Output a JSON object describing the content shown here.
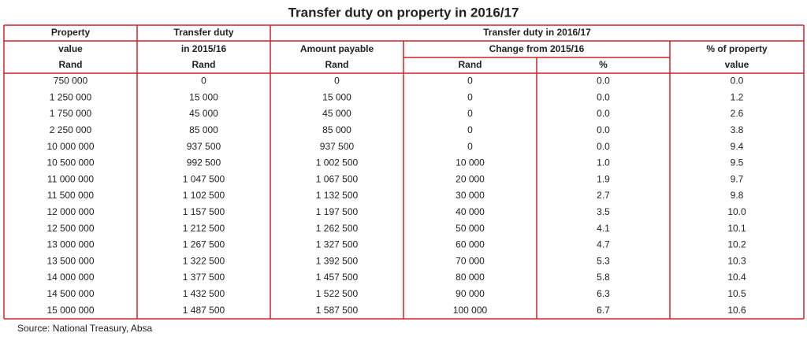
{
  "title": "Transfer duty on property in 2016/17",
  "header": {
    "rows": [
      [
        "Property",
        "Transfer duty",
        "Transfer duty in 2016/17"
      ],
      [
        "value",
        "in 2015/16",
        "Amount payable",
        "Change from 2015/16",
        "% of property"
      ],
      [
        "Rand",
        "Rand",
        "Rand",
        "Rand",
        "%",
        "value"
      ]
    ]
  },
  "table": {
    "rows": [
      [
        "750 000",
        "0",
        "0",
        "0",
        "0.0",
        "0.0"
      ],
      [
        "1 250 000",
        "15 000",
        "15 000",
        "0",
        "0.0",
        "1.2"
      ],
      [
        "1 750 000",
        "45 000",
        "45 000",
        "0",
        "0.0",
        "2.6"
      ],
      [
        "2 250 000",
        "85 000",
        "85 000",
        "0",
        "0.0",
        "3.8"
      ],
      [
        "10 000 000",
        "937 500",
        "937 500",
        "0",
        "0.0",
        "9.4"
      ],
      [
        "10 500 000",
        "992 500",
        "1 002 500",
        "10 000",
        "1.0",
        "9.5"
      ],
      [
        "11 000 000",
        "1 047 500",
        "1 067 500",
        "20 000",
        "1.9",
        "9.7"
      ],
      [
        "11 500 000",
        "1 102 500",
        "1 132 500",
        "30 000",
        "2.7",
        "9.8"
      ],
      [
        "12 000 000",
        "1 157 500",
        "1 197 500",
        "40 000",
        "3.5",
        "10.0"
      ],
      [
        "12 500 000",
        "1 212 500",
        "1 262 500",
        "50 000",
        "4.1",
        "10.1"
      ],
      [
        "13 000 000",
        "1 267 500",
        "1 327 500",
        "60 000",
        "4.7",
        "10.2"
      ],
      [
        "13 500 000",
        "1 322 500",
        "1 392 500",
        "70 000",
        "5.3",
        "10.3"
      ],
      [
        "14 000 000",
        "1 377 500",
        "1 457 500",
        "80 000",
        "5.8",
        "10.4"
      ],
      [
        "14 500 000",
        "1 432 500",
        "1 522 500",
        "90 000",
        "6.3",
        "10.5"
      ],
      [
        "15 000 000",
        "1 487 500",
        "1 587 500",
        "100 000",
        "6.7",
        "10.6"
      ]
    ]
  },
  "source": "Source: National Treasury, Absa"
}
